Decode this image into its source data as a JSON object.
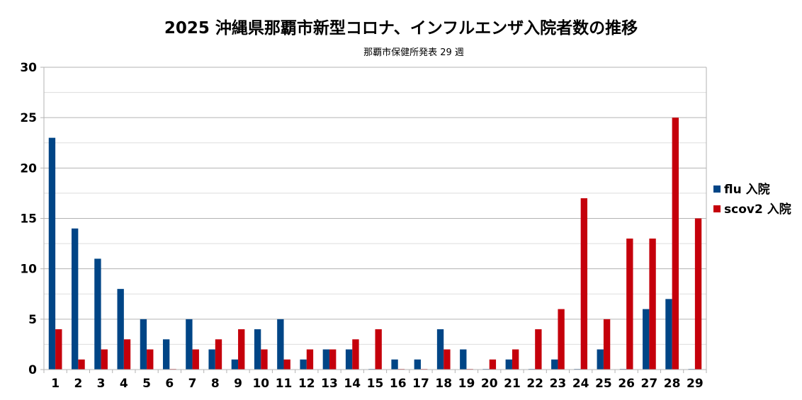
{
  "chart_data": {
    "type": "bar",
    "title": "2025 沖縄県那覇市新型コロナ、インフルエンザ入院者数の推移",
    "subtitle": "那覇市保健所発表 29 週",
    "xlabel": "",
    "ylabel": "",
    "categories": [
      "1",
      "2",
      "3",
      "4",
      "5",
      "6",
      "7",
      "8",
      "9",
      "10",
      "11",
      "12",
      "13",
      "14",
      "15",
      "16",
      "17",
      "18",
      "19",
      "20",
      "21",
      "22",
      "23",
      "24",
      "25",
      "26",
      "27",
      "28",
      "29"
    ],
    "series": [
      {
        "name": "flu 入院",
        "color": "#004586",
        "values": [
          23,
          14,
          11,
          8,
          5,
          3,
          5,
          2,
          1,
          4,
          5,
          1,
          2,
          2,
          0,
          1,
          1,
          4,
          2,
          0,
          1,
          0,
          1,
          0,
          2,
          0,
          6,
          7,
          0
        ]
      },
      {
        "name": "scov2 入院",
        "color": "#c5000b",
        "values": [
          4,
          1,
          2,
          3,
          2,
          0,
          2,
          3,
          4,
          2,
          1,
          2,
          2,
          3,
          4,
          0,
          0,
          2,
          0,
          1,
          2,
          4,
          6,
          17,
          5,
          13,
          13,
          25,
          15
        ]
      }
    ],
    "ylim": [
      0,
      30
    ],
    "yticks": [
      0,
      5,
      10,
      15,
      20,
      25,
      30
    ],
    "grid": true,
    "legend_position": "right"
  }
}
